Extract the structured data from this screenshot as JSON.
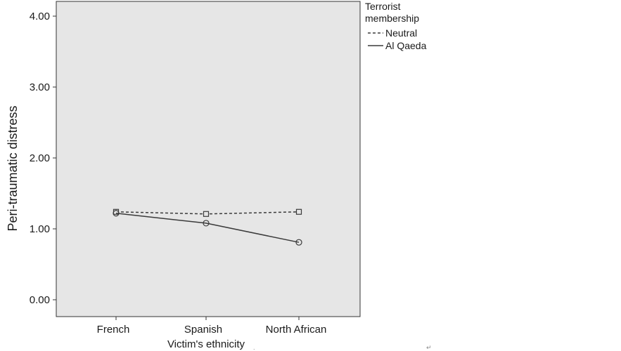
{
  "chart_data": {
    "type": "line",
    "categories": [
      "French",
      "Spanish",
      "North African"
    ],
    "series": [
      {
        "name": "Neutral",
        "values": [
          1.24,
          1.21,
          1.24
        ],
        "line_style": "dashed",
        "marker": "square"
      },
      {
        "name": "Al Qaeda",
        "values": [
          1.22,
          1.08,
          0.81
        ],
        "line_style": "solid",
        "marker": "circle"
      }
    ],
    "xlabel": "Victim's ethnicity",
    "ylabel": "Peri-traumatic distress",
    "ylim": [
      0,
      4
    ],
    "y_ticks": [
      "0.00",
      "1.00",
      "2.00",
      "3.00",
      "4.00"
    ],
    "legend_title": "Terrorist membership",
    "legend_position": "top-right, outside plot",
    "grid": false,
    "colors": {
      "plot_background": "#e6e6e6",
      "line": "#3a3a3a",
      "frame": "#333333"
    }
  }
}
